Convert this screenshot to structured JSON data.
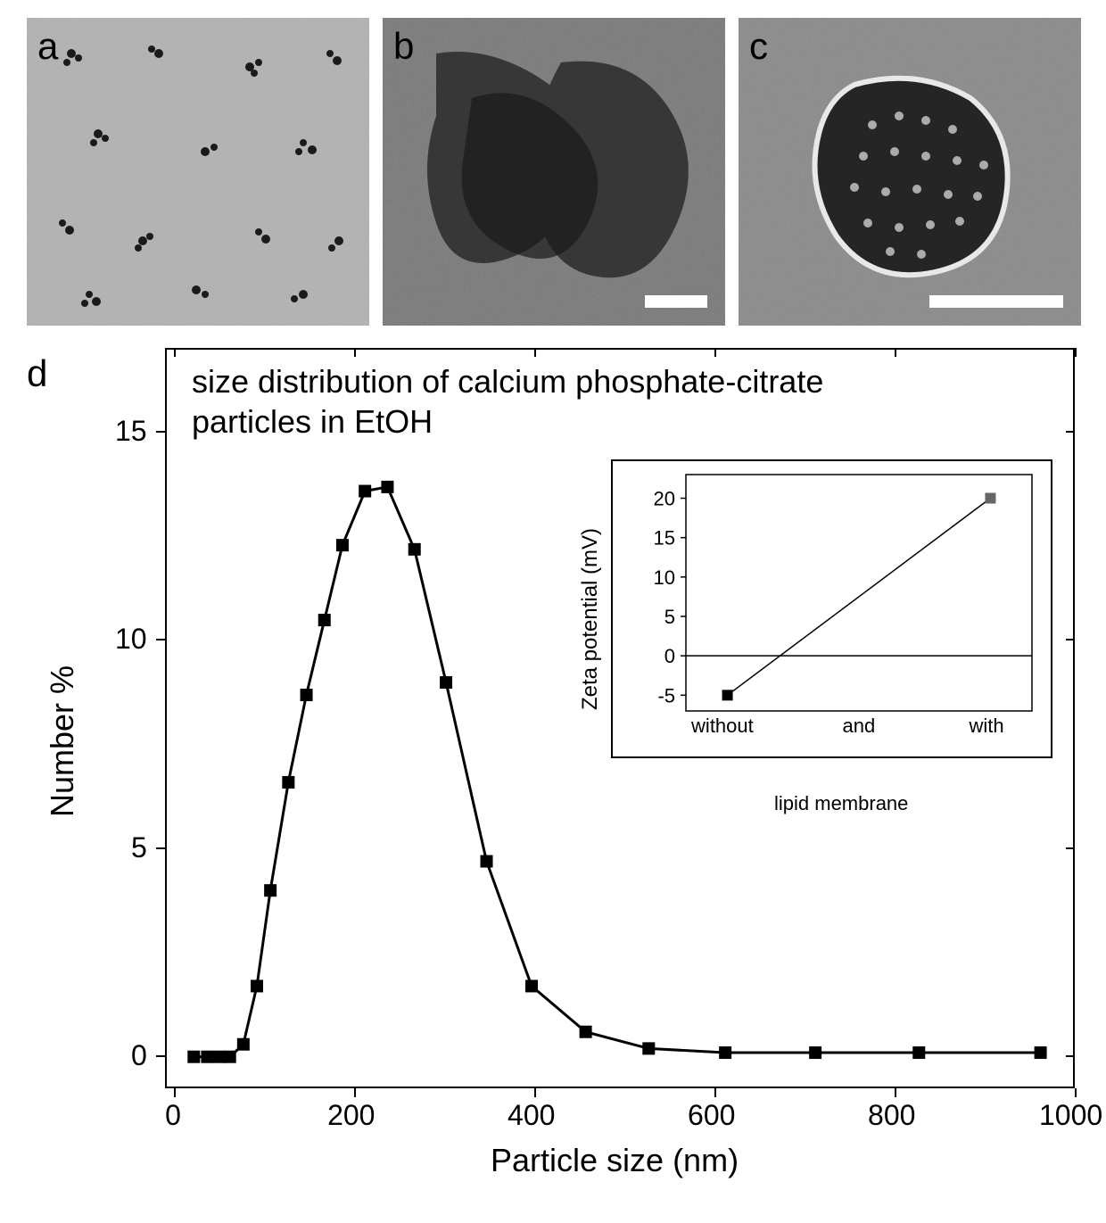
{
  "micrographs": {
    "a": {
      "label": "a",
      "scale_bar_width": 0,
      "bg_gray": "#aaaaaa"
    },
    "b": {
      "label": "b",
      "scale_bar_width": 70,
      "bg_gray": "#5a5a5a"
    },
    "c": {
      "label": "c",
      "scale_bar_width": 150,
      "bg_gray": "#808080"
    }
  },
  "panel_d_label": "d",
  "main_chart": {
    "title_line1": "size distribution of calcium phosphate-citrate",
    "title_line2": "particles in EtOH",
    "x_label": "Particle size (nm)",
    "y_label": "Number %",
    "x_ticks": [
      0,
      200,
      400,
      600,
      800,
      1000
    ],
    "y_ticks": [
      0,
      5,
      10,
      15
    ],
    "xlim": [
      -10,
      1000
    ],
    "ylim": [
      -0.8,
      17
    ],
    "data_points": [
      {
        "x": 20,
        "y": 0
      },
      {
        "x": 35,
        "y": 0
      },
      {
        "x": 48,
        "y": 0
      },
      {
        "x": 60,
        "y": 0
      },
      {
        "x": 75,
        "y": 0.3
      },
      {
        "x": 90,
        "y": 1.7
      },
      {
        "x": 105,
        "y": 4.0
      },
      {
        "x": 125,
        "y": 6.6
      },
      {
        "x": 145,
        "y": 8.7
      },
      {
        "x": 165,
        "y": 10.5
      },
      {
        "x": 185,
        "y": 12.3
      },
      {
        "x": 210,
        "y": 13.6
      },
      {
        "x": 235,
        "y": 13.7
      },
      {
        "x": 265,
        "y": 12.2
      },
      {
        "x": 300,
        "y": 9.0
      },
      {
        "x": 345,
        "y": 4.7
      },
      {
        "x": 395,
        "y": 1.7
      },
      {
        "x": 455,
        "y": 0.6
      },
      {
        "x": 525,
        "y": 0.2
      },
      {
        "x": 610,
        "y": 0.1
      },
      {
        "x": 710,
        "y": 0.1
      },
      {
        "x": 825,
        "y": 0.1
      },
      {
        "x": 960,
        "y": 0.1
      }
    ],
    "marker": "square",
    "marker_size": 14,
    "line_color": "#000000",
    "line_width": 3,
    "border_color": "#000000",
    "bg_color": "#ffffff",
    "label_fontsize": 36,
    "tick_fontsize": 32,
    "title_fontsize": 36
  },
  "inset_chart": {
    "y_label": "Zeta potential (mV)",
    "x_categories": [
      "without",
      "and",
      "with"
    ],
    "x_sublabel": "lipid membrane",
    "y_ticks": [
      -5,
      0,
      5,
      10,
      15,
      20
    ],
    "ylim": [
      -7,
      23
    ],
    "data_points": [
      {
        "cat": "without",
        "y": -5,
        "color": "#000000"
      },
      {
        "cat": "with",
        "y": 20,
        "color": "#666666"
      }
    ],
    "zero_line": true,
    "marker": "square",
    "marker_size": 12,
    "line_color": "#000000",
    "line_width": 1.5,
    "border_color": "#000000",
    "bg_color": "#ffffff",
    "label_fontsize": 24,
    "tick_fontsize": 22
  }
}
